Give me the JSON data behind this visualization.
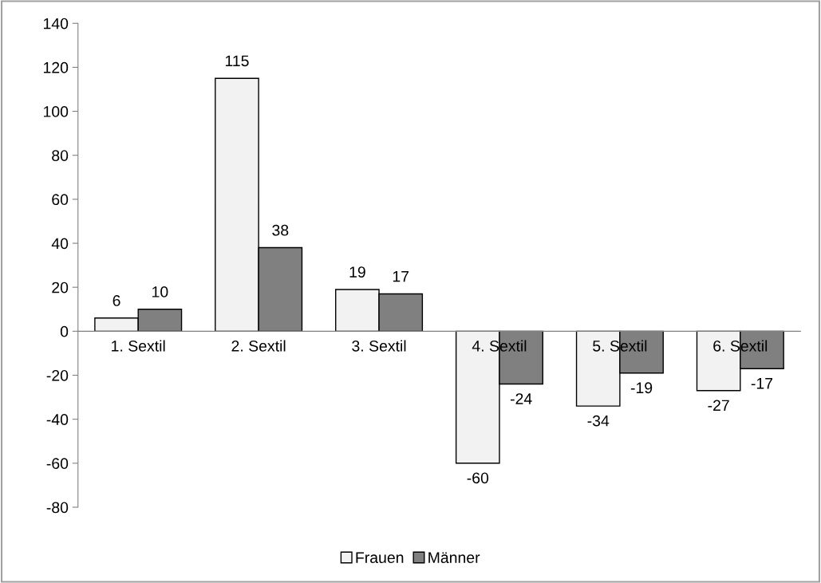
{
  "chart_data": {
    "type": "bar",
    "categories": [
      "1. Sextil",
      "2. Sextil",
      "3. Sextil",
      "4. Sextil",
      "5. Sextil",
      "6. Sextil"
    ],
    "series": [
      {
        "name": "Frauen",
        "color": "#f2f2f2",
        "values": [
          6,
          115,
          19,
          -60,
          -34,
          -27
        ]
      },
      {
        "name": "Männer",
        "color": "#808080",
        "values": [
          10,
          38,
          17,
          -24,
          -19,
          -17
        ]
      }
    ],
    "ylim": [
      -80,
      140
    ],
    "yticks": [
      -80,
      -60,
      -40,
      -20,
      0,
      20,
      40,
      60,
      80,
      100,
      120,
      140
    ],
    "data_labels": true,
    "legend": "bottom",
    "grid": false
  }
}
